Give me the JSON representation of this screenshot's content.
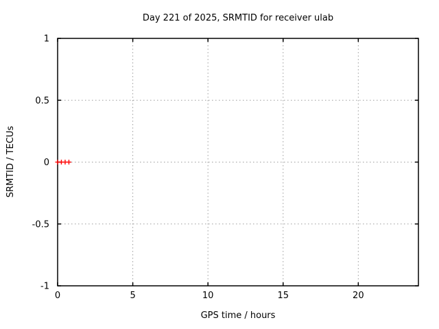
{
  "chart_data": {
    "type": "scatter",
    "title": "Day 221 of 2025, SRMTID for receiver ulab",
    "xlabel": "GPS time / hours",
    "ylabel": "SRMTID / TECUs",
    "xlim": [
      0,
      24
    ],
    "ylim": [
      -1,
      1
    ],
    "x_ticks": [
      0,
      5,
      10,
      15,
      20
    ],
    "x_tick_labels": [
      "0",
      "5",
      "10",
      "15",
      "20"
    ],
    "y_ticks": [
      -1,
      -0.5,
      0,
      0.5,
      1
    ],
    "y_tick_labels": [
      "-1",
      "-0.5",
      "0",
      "0.5",
      "1"
    ],
    "grid": true,
    "legend": "none",
    "marker": "plus",
    "series": [
      {
        "name": "SRMTID",
        "x": [
          0.0,
          0.25,
          0.5,
          0.75
        ],
        "y": [
          0,
          0,
          0,
          0
        ]
      }
    ],
    "colors": {
      "marker": "#ff0000",
      "grid": "#9b9b9b",
      "axis": "#000000",
      "background": "#ffffff"
    }
  }
}
